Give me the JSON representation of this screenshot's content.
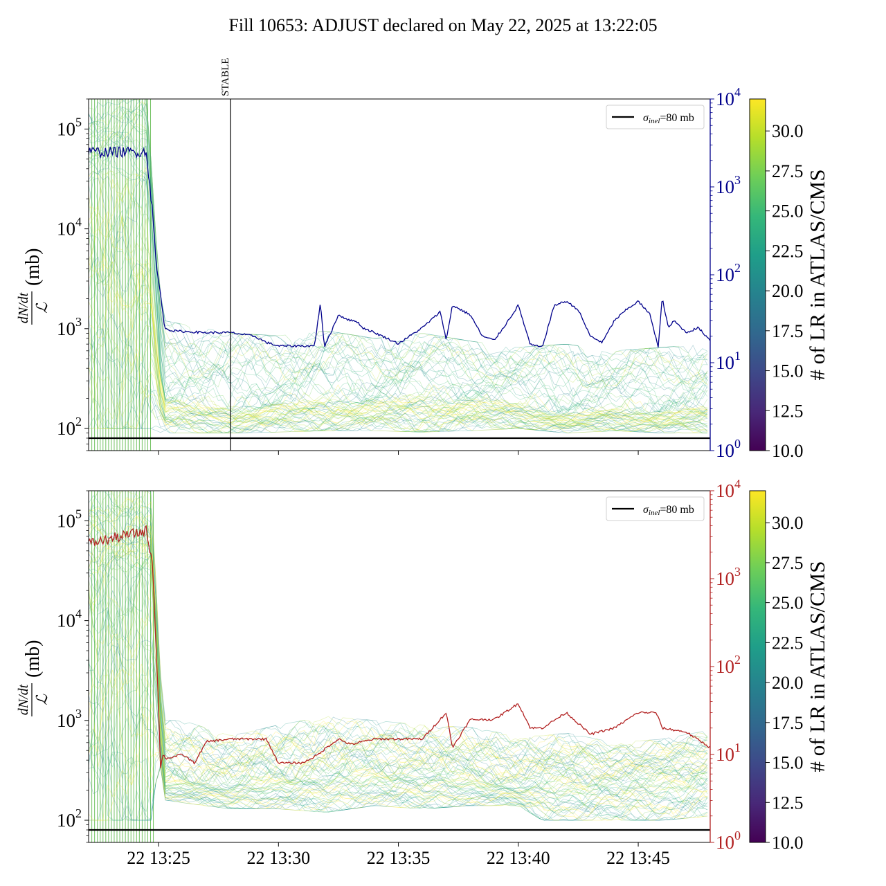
{
  "figure": {
    "title": "Fill 10653: ADJUST declared on May 22, 2025 at 13:22:05"
  },
  "colors": {
    "top_line": "#00008b",
    "bottom_line": "#b22222",
    "sigma_line": "#000000",
    "viridis": [
      "#440154",
      "#482878",
      "#3e4989",
      "#31688e",
      "#26828e",
      "#1f9e89",
      "#35b779",
      "#6ece58",
      "#b5de2b",
      "#fde725"
    ]
  },
  "icons": {
    "legend_line": "black-line-swatch"
  },
  "chart_data": [
    {
      "type": "line",
      "panel": "top",
      "ylabel_main": "(mb)",
      "ylabel_frac_num": "dN/dt",
      "ylabel_frac_den": "ℒ",
      "y_scale": "log",
      "ylim": [
        60,
        200000
      ],
      "y_ticks": [
        {
          "value": 100,
          "label": "10",
          "exp": "2"
        },
        {
          "value": 1000,
          "label": "10",
          "exp": "3"
        },
        {
          "value": 10000,
          "label": "10",
          "exp": "4"
        },
        {
          "value": 100000,
          "label": "10",
          "exp": "5"
        }
      ],
      "y2_scale": "log",
      "y2lim": [
        1,
        10000
      ],
      "y2_color": "#00008b",
      "y2_ticks": [
        {
          "value": 1,
          "label": "10",
          "exp": "0"
        },
        {
          "value": 10,
          "label": "10",
          "exp": "1"
        },
        {
          "value": 100,
          "label": "10",
          "exp": "2"
        },
        {
          "value": 1000,
          "label": "10",
          "exp": "3"
        },
        {
          "value": 10000,
          "label": "10",
          "exp": "4"
        }
      ],
      "x_range": [
        "13:22:05",
        "13:48:00"
      ],
      "x_ticks": [
        "13:25",
        "13:30",
        "13:35",
        "13:40",
        "13:45"
      ],
      "show_x_labels": false,
      "vline": {
        "time": "13:28:00",
        "label": "STABLE"
      },
      "hline": {
        "value": 80
      },
      "legend": {
        "label_sym": "σ",
        "label_sub": "inel",
        "label_rest": "=80 mb",
        "loc": "upper right"
      },
      "colorbar": {
        "label": "# of LR in ATLAS/CMS",
        "range": [
          10,
          32
        ],
        "ticks": [
          "10.0",
          "12.5",
          "15.0",
          "17.5",
          "20.0",
          "22.5",
          "25.0",
          "27.5",
          "30.0"
        ]
      },
      "series_right": {
        "name": "",
        "color": "#00008b",
        "x": [
          "13:22:05",
          "13:24:30",
          "13:24:45",
          "13:24:55",
          "13:25:05",
          "13:25:15",
          "13:25:35",
          "13:27:00",
          "13:28:00",
          "13:29:00",
          "13:29:30",
          "13:30:00",
          "13:30:30",
          "13:31:30",
          "13:31:45",
          "13:31:55",
          "13:32:30",
          "13:33:00",
          "13:33:15",
          "13:33:30",
          "13:34:00",
          "13:35:00",
          "13:36:00",
          "13:36:45",
          "13:37:00",
          "13:37:15",
          "13:38:00",
          "13:38:30",
          "13:39:00",
          "13:39:30",
          "13:40:00",
          "13:40:30",
          "13:41:00",
          "13:41:30",
          "13:42:00",
          "13:42:30",
          "13:43:00",
          "13:43:30",
          "13:44:00",
          "13:44:30",
          "13:45:00",
          "13:45:30",
          "13:45:50",
          "13:46:00",
          "13:46:15",
          "13:46:30",
          "13:47:00",
          "13:47:30",
          "13:48:00"
        ],
        "values": [
          2500,
          2500,
          500,
          120,
          60,
          25,
          23,
          22,
          22,
          20,
          17,
          15.5,
          15.5,
          15.5,
          48,
          15,
          35,
          30,
          30,
          25,
          22,
          16.5,
          25,
          38,
          18,
          45,
          35,
          20,
          18,
          28,
          45,
          16,
          15,
          45,
          50,
          40,
          20,
          17,
          30,
          40,
          50,
          35,
          15,
          55,
          25,
          30,
          22,
          25,
          18
        ]
      },
      "band": {
        "x": [
          "13:22:05",
          "13:24:30",
          "13:24:45",
          "13:25:00",
          "13:25:15",
          "13:28:00",
          "13:30:00",
          "13:32:00",
          "13:34:00",
          "13:36:00",
          "13:38:00",
          "13:40:00",
          "13:42:00",
          "13:44:00",
          "13:46:00",
          "13:48:00"
        ],
        "lower": [
          100,
          100,
          100,
          92,
          90,
          90,
          92,
          95,
          95,
          92,
          95,
          100,
          90,
          95,
          90,
          90
        ],
        "upper": [
          200000,
          200000,
          30000,
          3000,
          1200,
          900,
          850,
          950,
          800,
          900,
          750,
          650,
          700,
          600,
          650,
          700
        ],
        "center": [
          30000,
          30000,
          8000,
          600,
          200,
          160,
          180,
          200,
          190,
          220,
          200,
          180,
          140,
          160,
          150,
          170
        ]
      }
    },
    {
      "type": "line",
      "panel": "bottom",
      "ylabel_main": "(mb)",
      "ylabel_frac_num": "dN/dt",
      "ylabel_frac_den": "ℒ",
      "y_scale": "log",
      "ylim": [
        60,
        200000
      ],
      "y_ticks": [
        {
          "value": 100,
          "label": "10",
          "exp": "2"
        },
        {
          "value": 1000,
          "label": "10",
          "exp": "3"
        },
        {
          "value": 10000,
          "label": "10",
          "exp": "4"
        },
        {
          "value": 100000,
          "label": "10",
          "exp": "5"
        }
      ],
      "y2_scale": "log",
      "y2lim": [
        1,
        10000
      ],
      "y2_color": "#b22222",
      "y2_ticks": [
        {
          "value": 1,
          "label": "10",
          "exp": "0"
        },
        {
          "value": 10,
          "label": "10",
          "exp": "1"
        },
        {
          "value": 100,
          "label": "10",
          "exp": "2"
        },
        {
          "value": 1000,
          "label": "10",
          "exp": "3"
        },
        {
          "value": 10000,
          "label": "10",
          "exp": "4"
        }
      ],
      "x_range": [
        "13:22:05",
        "13:48:00"
      ],
      "x_ticks": [
        "13:25",
        "13:30",
        "13:35",
        "13:40",
        "13:45"
      ],
      "x_tick_labels": [
        "22 13:25",
        "22 13:30",
        "22 13:35",
        "22 13:40",
        "22 13:45"
      ],
      "show_x_labels": true,
      "hline": {
        "value": 80
      },
      "legend": {
        "label_sym": "σ",
        "label_sub": "inel",
        "label_rest": "=80 mb",
        "loc": "upper right"
      },
      "colorbar": {
        "label": "# of LR in ATLAS/CMS",
        "range": [
          10,
          32
        ],
        "ticks": [
          "10.0",
          "12.5",
          "15.0",
          "17.5",
          "20.0",
          "22.5",
          "25.0",
          "27.5",
          "30.0"
        ]
      },
      "series_right": {
        "name": "",
        "color": "#b22222",
        "x": [
          "13:22:05",
          "13:24:30",
          "13:24:45",
          "13:25:00",
          "13:25:05",
          "13:25:10",
          "13:25:20",
          "13:26:00",
          "13:26:30",
          "13:27:00",
          "13:28:00",
          "13:29:30",
          "13:30:00",
          "13:31:00",
          "13:31:40",
          "13:32:00",
          "13:32:30",
          "13:33:00",
          "13:34:00",
          "13:35:00",
          "13:36:00",
          "13:37:00",
          "13:37:15",
          "13:38:00",
          "13:39:00",
          "13:40:00",
          "13:40:30",
          "13:41:00",
          "13:42:00",
          "13:43:00",
          "13:44:00",
          "13:45:00",
          "13:45:45",
          "13:46:00",
          "13:47:00",
          "13:48:00"
        ],
        "values": [
          2500,
          3500,
          1500,
          35,
          7,
          10,
          9,
          10,
          8,
          14,
          15,
          15,
          8,
          8,
          10,
          12,
          15,
          13,
          15,
          15,
          15,
          30,
          12,
          25,
          25,
          38,
          20,
          20,
          30,
          17,
          20,
          30,
          30,
          20,
          18,
          12
        ]
      },
      "band": {
        "x": [
          "13:22:05",
          "13:24:45",
          "13:25:00",
          "13:25:15",
          "13:26:00",
          "13:28:00",
          "13:30:00",
          "13:32:00",
          "13:34:00",
          "13:36:00",
          "13:38:00",
          "13:40:00",
          "13:41:00",
          "13:42:00",
          "13:44:00",
          "13:46:00",
          "13:48:00"
        ],
        "lower": [
          100,
          100,
          500,
          160,
          150,
          130,
          130,
          120,
          140,
          130,
          140,
          140,
          100,
          100,
          100,
          100,
          110
        ],
        "upper": [
          200000,
          200000,
          5000,
          1000,
          1000,
          700,
          900,
          1100,
          1000,
          900,
          850,
          700,
          700,
          750,
          600,
          650,
          800
        ],
        "center": [
          30000,
          30000,
          1500,
          250,
          250,
          220,
          260,
          280,
          300,
          280,
          260,
          220,
          230,
          240,
          240,
          250,
          300
        ]
      }
    }
  ]
}
